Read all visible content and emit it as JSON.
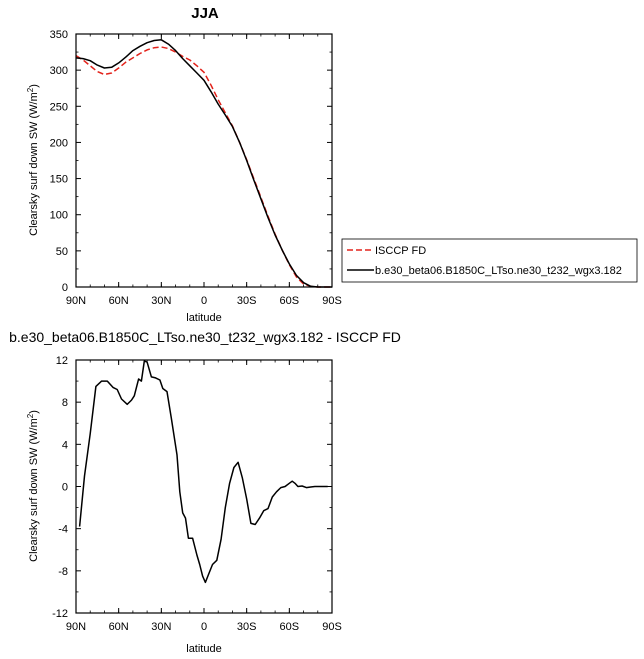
{
  "chart_data": [
    {
      "type": "line",
      "title": "JJA",
      "xlabel": "latitude",
      "ylabel": "Clearsky surf down SW (W/m",
      "ylabel_sup": "2",
      "ylabel_close": ")",
      "xlim": [
        90,
        -90
      ],
      "ylim": [
        0,
        350
      ],
      "x_ticks": [
        90,
        60,
        30,
        0,
        -30,
        -60,
        -90
      ],
      "x_tick_labels": [
        "90N",
        "60N",
        "30N",
        "0",
        "30S",
        "60S",
        "90S"
      ],
      "y_ticks": [
        0,
        50,
        100,
        150,
        200,
        250,
        300,
        350
      ],
      "y_tick_labels": [
        "0",
        "50",
        "100",
        "150",
        "200",
        "250",
        "300",
        "350"
      ],
      "legend_position": "right",
      "series": [
        {
          "name": "ISCCP FD",
          "color": "#e3231b",
          "dash": "dashed",
          "x": [
            90,
            85,
            80,
            75,
            70,
            65,
            60,
            55,
            50,
            45,
            40,
            35,
            30,
            25,
            20,
            15,
            10,
            5,
            0,
            -5,
            -10,
            -15,
            -20,
            -25,
            -30,
            -35,
            -40,
            -45,
            -50,
            -55,
            -60,
            -65,
            -70,
            -75,
            -80,
            -85,
            -90
          ],
          "y": [
            320,
            314,
            306,
            298,
            294,
            296,
            303,
            311,
            317,
            323,
            328,
            331,
            332,
            330,
            325,
            319,
            314,
            306,
            297,
            279,
            259,
            241,
            223,
            200,
            176,
            150,
            124,
            98,
            73,
            51,
            31,
            14,
            4,
            1,
            0,
            0,
            0
          ]
        },
        {
          "name": "b.e30_beta06.B1850C_LTso.ne30_t232_wgx3.182",
          "color": "#000000",
          "dash": "solid",
          "x": [
            90,
            85,
            80,
            75,
            70,
            65,
            60,
            55,
            50,
            45,
            40,
            35,
            30,
            25,
            20,
            15,
            10,
            5,
            0,
            -5,
            -10,
            -15,
            -20,
            -25,
            -30,
            -35,
            -40,
            -45,
            -50,
            -55,
            -60,
            -65,
            -70,
            -75,
            -80,
            -85,
            -90
          ],
          "y": [
            317,
            316,
            313,
            307,
            303,
            304,
            310,
            318,
            327,
            333,
            338,
            341,
            342,
            336,
            327,
            316,
            306,
            296,
            286,
            270,
            253,
            238,
            222,
            200,
            175,
            148,
            122,
            96,
            72,
            51,
            32,
            16,
            6,
            1,
            0,
            0,
            0
          ]
        }
      ]
    },
    {
      "type": "line",
      "title": "b.e30_beta06.B1850C_LTso.ne30_t232_wgx3.182 - ISCCP FD",
      "xlabel": "latitude",
      "ylabel": "Clearsky surf down SW (W/m",
      "ylabel_sup": "2",
      "ylabel_close": ")",
      "xlim": [
        90,
        -90
      ],
      "ylim": [
        -12,
        12
      ],
      "x_ticks": [
        90,
        60,
        30,
        0,
        -30,
        -60,
        -90
      ],
      "x_tick_labels": [
        "90N",
        "60N",
        "30N",
        "0",
        "30S",
        "60S",
        "90S"
      ],
      "y_ticks": [
        -12,
        -8,
        -4,
        0,
        4,
        8,
        12
      ],
      "y_tick_labels": [
        "-12",
        "-8",
        "-4",
        "0",
        "4",
        "8",
        "12"
      ],
      "series": [
        {
          "color": "#000000",
          "dash": "solid",
          "x": [
            87.5,
            84,
            80,
            76,
            72,
            68,
            64,
            61,
            58,
            54,
            51,
            49,
            46,
            44,
            42,
            40,
            37,
            34,
            31,
            29,
            26,
            23,
            19,
            17,
            15,
            13,
            11,
            8,
            5,
            3,
            1,
            -1,
            -3,
            -6,
            -9,
            -12,
            -15,
            -18,
            -21,
            -24,
            -27,
            -30,
            -33,
            -36,
            -39,
            -42,
            -45,
            -48,
            -51,
            -54,
            -57,
            -60,
            -62,
            -64,
            -66,
            -69,
            -72,
            -75,
            -78,
            -81,
            -84,
            -87
          ],
          "y": [
            -3.8,
            1,
            5,
            9.5,
            10,
            10,
            9.4,
            9.2,
            8.3,
            7.8,
            8.2,
            8.6,
            10.2,
            10,
            11.9,
            11.8,
            10.4,
            10.3,
            10.1,
            9.3,
            9,
            6.5,
            3,
            -0.5,
            -2.5,
            -3,
            -4.9,
            -4.9,
            -6.5,
            -7.4,
            -8.5,
            -9.1,
            -8.4,
            -7.4,
            -7,
            -5,
            -2,
            0.3,
            1.8,
            2.3,
            0.8,
            -1.2,
            -3.5,
            -3.6,
            -3,
            -2.3,
            -2.1,
            -1,
            -0.5,
            -0.1,
            0,
            0.3,
            0.5,
            0.3,
            0,
            0.05,
            -0.1,
            -0.05,
            0,
            0,
            0,
            0
          ]
        }
      ]
    }
  ]
}
